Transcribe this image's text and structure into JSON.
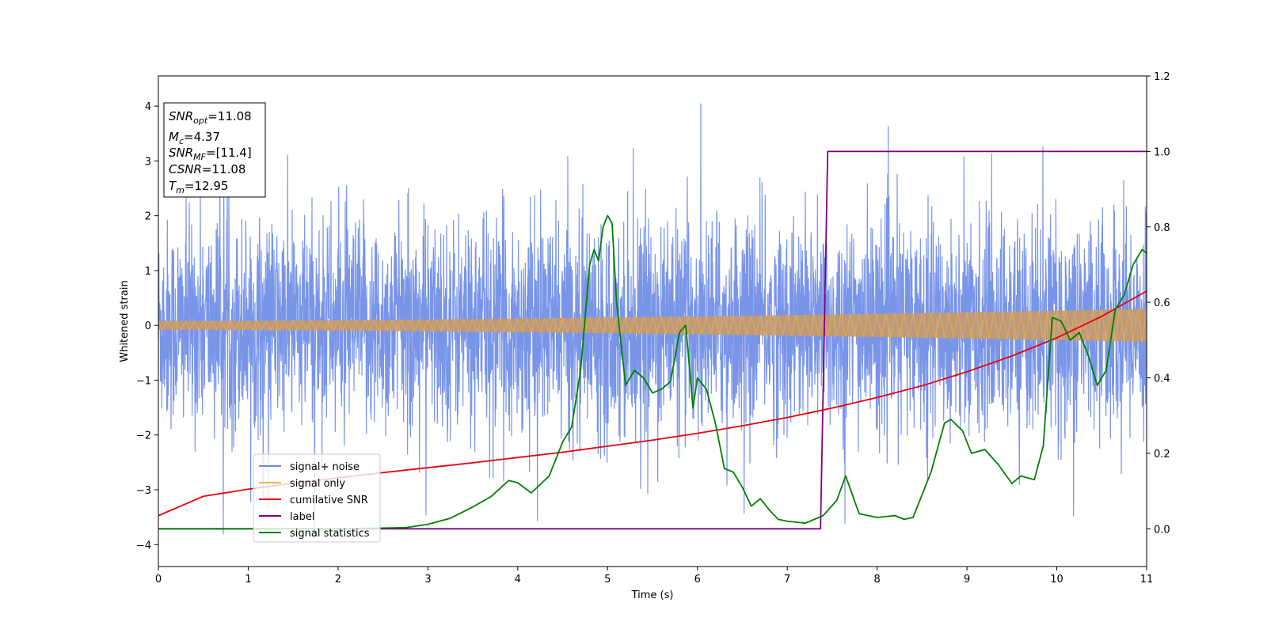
{
  "chart_data": {
    "type": "line",
    "xlabel": "Time (s)",
    "ylabel": "Whitened strain",
    "xlim": [
      0,
      11
    ],
    "ylim_left": [
      -4.4,
      4.55
    ],
    "ylim_right": [
      -0.1,
      1.2
    ],
    "x_ticks": [
      0,
      1,
      2,
      3,
      4,
      5,
      6,
      7,
      8,
      9,
      10,
      11
    ],
    "y_ticks_left": [
      -4,
      -3,
      -2,
      -1,
      0,
      1,
      2,
      3,
      4
    ],
    "y_ticks_right": [
      0.0,
      0.2,
      0.4,
      0.6,
      0.8,
      1.0,
      1.2
    ],
    "legend_position": "lower-left",
    "annotation": {
      "lines": [
        {
          "base": "SNR",
          "sub": "opt",
          "value": "=11.08"
        },
        {
          "base": "M",
          "sub": "c",
          "value": "=4.37"
        },
        {
          "base": "SNR",
          "sub": "MF",
          "value": "=[11.4]"
        },
        {
          "base": "CSNR",
          "sub": "",
          "value": "=11.08"
        },
        {
          "base": "T",
          "sub": "m",
          "value": "=12.95"
        }
      ]
    },
    "series": [
      {
        "name": "signal+ noise",
        "color": "#6a8ae6",
        "axis": "left",
        "style": "noise band",
        "typical_range": [
          -1.9,
          2.2
        ],
        "peak_range": [
          -3.9,
          4.05
        ]
      },
      {
        "name": "signal only",
        "color": "#f5b041",
        "axis": "left",
        "style": "chirp band",
        "amplitude_start": 0.08,
        "amplitude_end": 0.3
      },
      {
        "name": "cumilative SNR",
        "color": "#e8000b",
        "axis": "right",
        "x": [
          0,
          0.5,
          1,
          1.5,
          2,
          2.5,
          3,
          3.5,
          4,
          4.5,
          5,
          5.5,
          6,
          6.5,
          7,
          7.5,
          8,
          8.5,
          9,
          9.5,
          10,
          10.5,
          11
        ],
        "y": [
          0.035,
          0.086,
          0.105,
          0.121,
          0.135,
          0.149,
          0.162,
          0.175,
          0.189,
          0.203,
          0.219,
          0.235,
          0.253,
          0.273,
          0.295,
          0.32,
          0.348,
          0.379,
          0.416,
          0.458,
          0.506,
          0.563,
          0.63
        ]
      },
      {
        "name": "label",
        "color": "#800080",
        "axis": "right",
        "x": [
          0,
          7.37,
          7.45,
          11
        ],
        "y": [
          0,
          0,
          1,
          1
        ]
      },
      {
        "name": "signal statistics",
        "color": "#008000",
        "axis": "right",
        "x": [
          0,
          0.5,
          1,
          1.5,
          2,
          2.5,
          2.75,
          3.0,
          3.25,
          3.5,
          3.7,
          3.9,
          4.0,
          4.15,
          4.35,
          4.5,
          4.6,
          4.7,
          4.8,
          4.85,
          4.9,
          4.95,
          5.0,
          5.05,
          5.1,
          5.2,
          5.3,
          5.4,
          5.5,
          5.6,
          5.7,
          5.8,
          5.87,
          5.95,
          6.0,
          6.1,
          6.2,
          6.3,
          6.4,
          6.5,
          6.6,
          6.7,
          6.8,
          6.9,
          7.0,
          7.2,
          7.4,
          7.55,
          7.65,
          7.8,
          8.0,
          8.2,
          8.3,
          8.4,
          8.6,
          8.75,
          8.82,
          8.95,
          9.05,
          9.2,
          9.35,
          9.5,
          9.6,
          9.75,
          9.85,
          9.95,
          10.05,
          10.15,
          10.25,
          10.35,
          10.45,
          10.55,
          10.65,
          10.75,
          10.85,
          10.95,
          11.0
        ],
        "y": [
          0.0,
          0.0,
          0.0,
          0.0,
          0.0,
          0.002,
          0.003,
          0.012,
          0.028,
          0.058,
          0.085,
          0.128,
          0.122,
          0.095,
          0.14,
          0.23,
          0.27,
          0.42,
          0.7,
          0.74,
          0.71,
          0.8,
          0.83,
          0.81,
          0.6,
          0.38,
          0.42,
          0.4,
          0.36,
          0.37,
          0.39,
          0.52,
          0.54,
          0.32,
          0.4,
          0.37,
          0.28,
          0.16,
          0.15,
          0.11,
          0.06,
          0.08,
          0.05,
          0.025,
          0.02,
          0.015,
          0.035,
          0.075,
          0.14,
          0.04,
          0.03,
          0.035,
          0.025,
          0.03,
          0.15,
          0.28,
          0.29,
          0.26,
          0.2,
          0.21,
          0.17,
          0.12,
          0.14,
          0.13,
          0.22,
          0.56,
          0.55,
          0.5,
          0.52,
          0.46,
          0.38,
          0.42,
          0.58,
          0.62,
          0.7,
          0.74,
          0.73
        ]
      }
    ]
  }
}
